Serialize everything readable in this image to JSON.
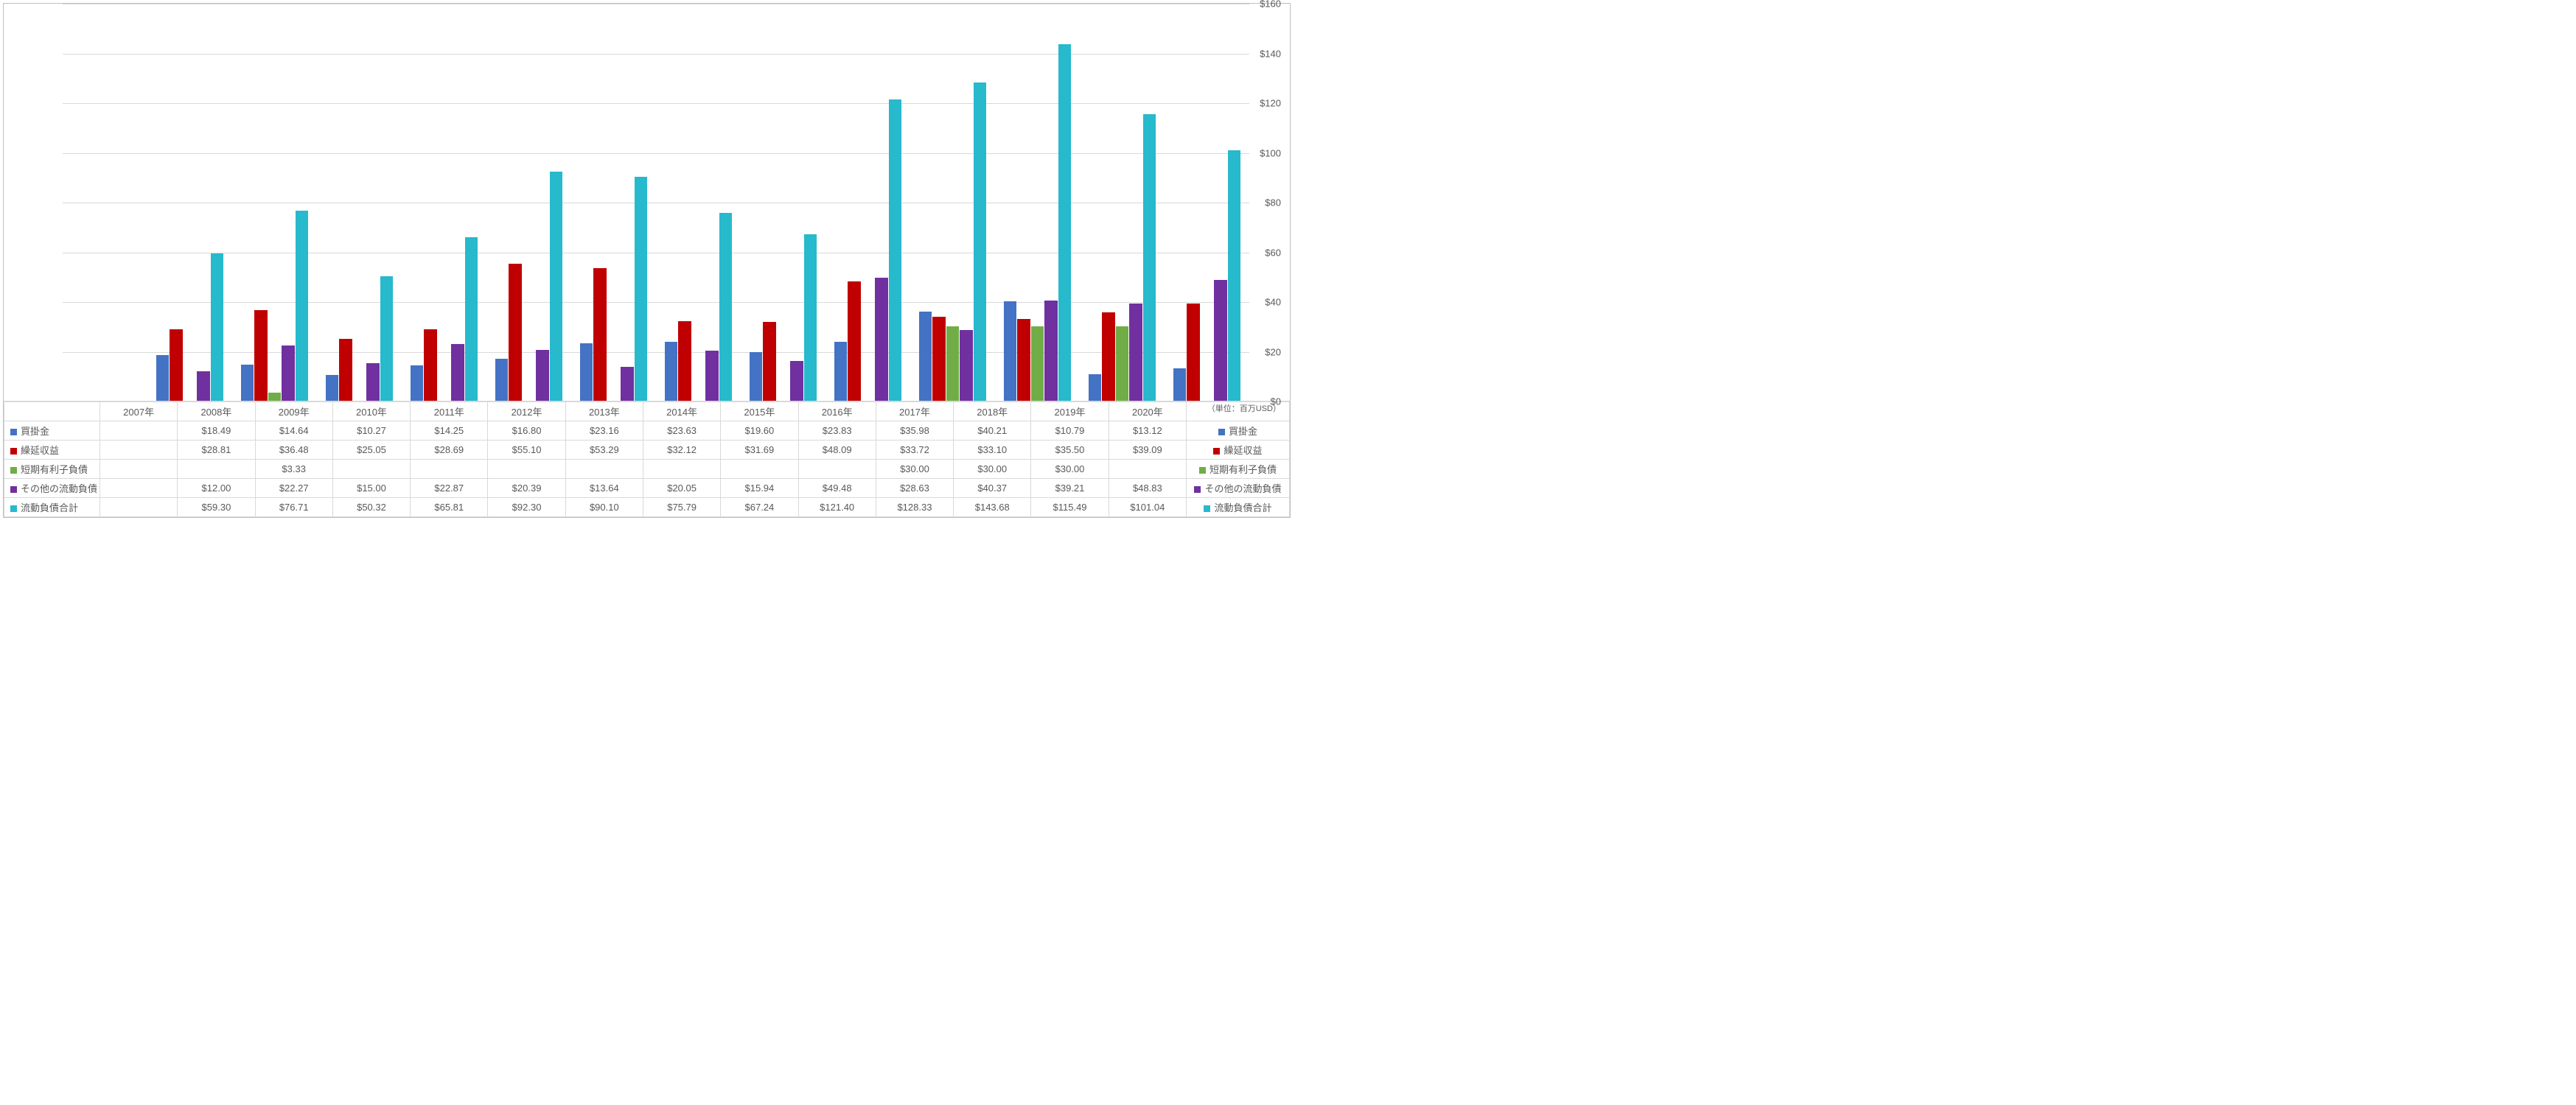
{
  "chart": {
    "type": "bar",
    "ylim": [
      0,
      160
    ],
    "ytick_step": 20,
    "ytick_prefix": "$",
    "grid_color": "#d9d9d9",
    "background_color": "#ffffff",
    "axis_label_color": "#595959",
    "axis_fontsize": 13,
    "unit_label": "（単位：百万USD）"
  },
  "categories": [
    "2007年",
    "2008年",
    "2009年",
    "2010年",
    "2011年",
    "2012年",
    "2013年",
    "2014年",
    "2015年",
    "2016年",
    "2017年",
    "2018年",
    "2019年",
    "2020年"
  ],
  "series": [
    {
      "key": "s1",
      "label": "買掛金",
      "color": "#4472c4",
      "values": [
        null,
        18.49,
        14.64,
        10.27,
        14.25,
        16.8,
        23.16,
        23.63,
        19.6,
        23.83,
        35.98,
        40.21,
        10.79,
        13.12
      ],
      "display": [
        "",
        "$18.49",
        "$14.64",
        "$10.27",
        "$14.25",
        "$16.80",
        "$23.16",
        "$23.63",
        "$19.60",
        "$23.83",
        "$35.98",
        "$40.21",
        "$10.79",
        "$13.12"
      ]
    },
    {
      "key": "s2",
      "label": "繰延収益",
      "color": "#c00000",
      "values": [
        null,
        28.81,
        36.48,
        25.05,
        28.69,
        55.1,
        53.29,
        32.12,
        31.69,
        48.09,
        33.72,
        33.1,
        35.5,
        39.09
      ],
      "display": [
        "",
        "$28.81",
        "$36.48",
        "$25.05",
        "$28.69",
        "$55.10",
        "$53.29",
        "$32.12",
        "$31.69",
        "$48.09",
        "$33.72",
        "$33.10",
        "$35.50",
        "$39.09"
      ]
    },
    {
      "key": "s3",
      "label": "短期有利子負債",
      "color": "#70ad47",
      "values": [
        null,
        null,
        3.33,
        null,
        null,
        null,
        null,
        null,
        null,
        null,
        30.0,
        30.0,
        30.0,
        null
      ],
      "display": [
        "",
        "",
        "$3.33",
        "",
        "",
        "",
        "",
        "",
        "",
        "",
        "$30.00",
        "$30.00",
        "$30.00",
        ""
      ]
    },
    {
      "key": "s4",
      "label": "その他の流動負債",
      "color": "#7030a0",
      "values": [
        null,
        12.0,
        22.27,
        15.0,
        22.87,
        20.39,
        13.64,
        20.05,
        15.94,
        49.48,
        28.63,
        40.37,
        39.21,
        48.83
      ],
      "display": [
        "",
        "$12.00",
        "$22.27",
        "$15.00",
        "$22.87",
        "$20.39",
        "$13.64",
        "$20.05",
        "$15.94",
        "$49.48",
        "$28.63",
        "$40.37",
        "$39.21",
        "$48.83"
      ]
    },
    {
      "key": "s5",
      "label": "流動負債合計",
      "color": "#27b9cc",
      "values": [
        null,
        59.3,
        76.71,
        50.32,
        65.81,
        92.3,
        90.1,
        75.79,
        67.24,
        121.4,
        128.33,
        143.68,
        115.49,
        101.04
      ],
      "display": [
        "",
        "$59.30",
        "$76.71",
        "$50.32",
        "$65.81",
        "$92.30",
        "$90.10",
        "$75.79",
        "$67.24",
        "$121.40",
        "$128.33",
        "$143.68",
        "$115.49",
        "$101.04"
      ]
    }
  ]
}
